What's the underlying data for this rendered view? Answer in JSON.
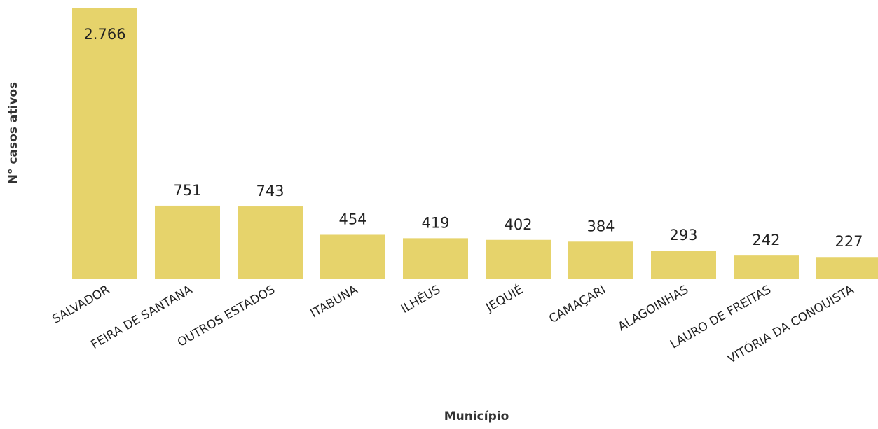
{
  "chart_data": {
    "type": "bar",
    "xlabel": "Município",
    "ylabel": "N° casos ativos",
    "categories": [
      "SALVADOR",
      "FEIRA DE SANTANA",
      "OUTROS ESTADOS",
      "ITABUNA",
      "ILHÉUS",
      "JEQUIÉ",
      "CAMAÇARI",
      "ALAGOINHAS",
      "LAURO DE FREITAS",
      "VITÓRIA DA CONQUISTA"
    ],
    "values": [
      2766,
      751,
      743,
      454,
      419,
      402,
      384,
      293,
      242,
      227
    ],
    "value_labels": [
      "2.766",
      "751",
      "743",
      "454",
      "419",
      "402",
      "384",
      "293",
      "242",
      "227"
    ],
    "ylim": [
      0,
      2766
    ],
    "grid": false,
    "legend": "none",
    "colors": {
      "bar": "#E6D36B",
      "text": "#222222",
      "axis_title": "#333333"
    }
  }
}
